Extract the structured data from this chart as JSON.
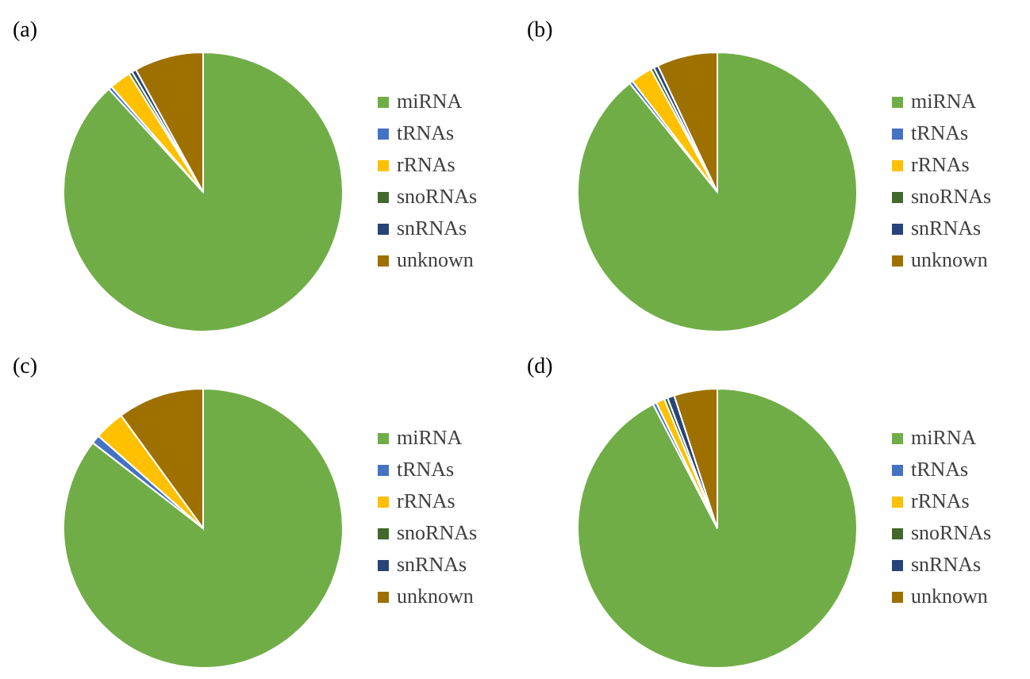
{
  "chart_data": [
    {
      "type": "pie",
      "title": "(a)",
      "categories": [
        "miRNA",
        "tRNAs",
        "rRNAs",
        "snoRNAs",
        "snRNAs",
        "unknown"
      ],
      "values": [
        88.2,
        0.4,
        2.5,
        0.4,
        0.5,
        8
      ],
      "colors": [
        "#70ad47",
        "#4472c4",
        "#ffc000",
        "#43682b",
        "#264478",
        "#9e7000"
      ],
      "legend": "right"
    },
    {
      "type": "pie",
      "title": "(b)",
      "categories": [
        "miRNA",
        "tRNAs",
        "rRNAs",
        "snoRNAs",
        "snRNAs",
        "unknown"
      ],
      "values": [
        89.2,
        0.4,
        2.5,
        0.4,
        0.5,
        7
      ],
      "colors": [
        "#70ad47",
        "#4472c4",
        "#ffc000",
        "#43682b",
        "#264478",
        "#9e7000"
      ],
      "legend": "right"
    },
    {
      "type": "pie",
      "title": "(c)",
      "categories": [
        "miRNA",
        "tRNAs",
        "rRNAs",
        "snoRNAs",
        "snRNAs",
        "unknown"
      ],
      "values": [
        85.5,
        1,
        3.5,
        null,
        null,
        10
      ],
      "colors": [
        "#70ad47",
        "#4472c4",
        "#ffc000",
        "#43682b",
        "#264478",
        "#9e7000"
      ],
      "legend": "right"
    },
    {
      "type": "pie",
      "title": "(d)",
      "categories": [
        "miRNA",
        "tRNAs",
        "rRNAs",
        "snoRNAs",
        "snRNAs",
        "unknown"
      ],
      "values": [
        92.4,
        0.4,
        1,
        0.4,
        0.8,
        5
      ],
      "colors": [
        "#70ad47",
        "#4472c4",
        "#ffc000",
        "#43682b",
        "#264478",
        "#9e7000"
      ],
      "legend": "right"
    }
  ]
}
